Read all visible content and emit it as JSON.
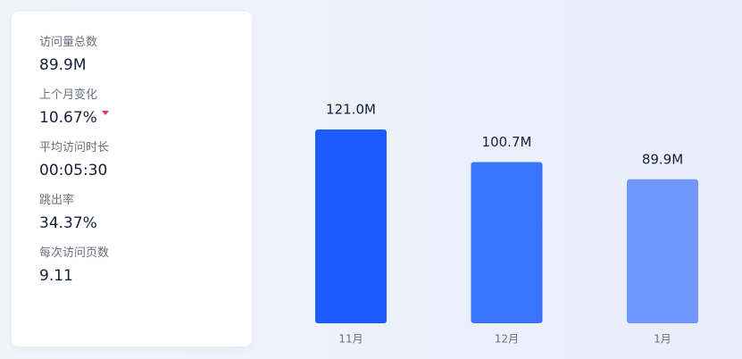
{
  "stats": [
    {
      "label": "访问量总数",
      "value": "89.9M"
    },
    {
      "label": "上个月变化",
      "value": "10.67%"
    },
    {
      "label": "平均访问时长",
      "value": "00:05:30"
    },
    {
      "label": "跳出率",
      "value": "34.37%"
    },
    {
      "label": "每次访问页数",
      "value": "9.11"
    }
  ],
  "chart_data": {
    "type": "bar",
    "categories": [
      "11月",
      "12月",
      "1月"
    ],
    "values": [
      121.0,
      100.7,
      89.9
    ],
    "value_labels": [
      "121.0M",
      "100.7M",
      "89.9M"
    ],
    "colors": [
      "#1a5cff",
      "#3a73ff",
      "#6f97ff"
    ]
  }
}
